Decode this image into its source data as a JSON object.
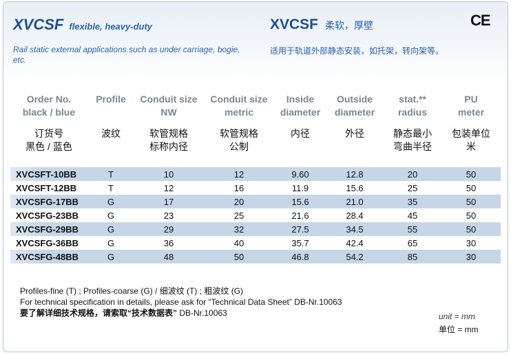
{
  "header": {
    "title_en": "XVCSF",
    "subtitle_en": "flexible, heavy-duty",
    "desc_en": "Rail static external applications such as under carriage, bogie, etc.",
    "title_cn": "XVCSF",
    "subtitle_cn": "柔软，厚壁",
    "desc_cn": "适用于轨道外部静态安装，如托架，转向架等。",
    "mark": "CE"
  },
  "table": {
    "headers_en": [
      [
        "Order No.",
        "black / blue"
      ],
      [
        "Profile",
        ""
      ],
      [
        "Conduit size",
        "NW"
      ],
      [
        "Conduit size",
        "metric"
      ],
      [
        "Inside",
        "diameter"
      ],
      [
        "Outside",
        "diameter"
      ],
      [
        "stat.**",
        "radius"
      ],
      [
        "PU",
        "meter"
      ]
    ],
    "headers_cn": [
      [
        "订货号",
        "黑色 / 蓝色"
      ],
      [
        "波纹",
        ""
      ],
      [
        "软管规格",
        "标称内径"
      ],
      [
        "软管规格",
        "公制"
      ],
      [
        "内径",
        ""
      ],
      [
        "外径",
        ""
      ],
      [
        "静态最小",
        "弯曲半径"
      ],
      [
        "包装单位",
        "米"
      ]
    ],
    "rows": [
      [
        "XVCSFT-10BB",
        "T",
        "10",
        "12",
        "9.60",
        "12.8",
        "20",
        "50"
      ],
      [
        "XVCSFT-12BB",
        "T",
        "12",
        "16",
        "11.9",
        "15.6",
        "25",
        "50"
      ],
      [
        "XVCSFG-17BB",
        "G",
        "17",
        "20",
        "15.6",
        "21.0",
        "35",
        "50"
      ],
      [
        "XVCSFG-23BB",
        "G",
        "23",
        "25",
        "21.6",
        "28.4",
        "45",
        "50"
      ],
      [
        "XVCSFG-29BB",
        "G",
        "29",
        "32",
        "27.5",
        "34.5",
        "55",
        "50"
      ],
      [
        "XVCSFG-36BB",
        "G",
        "36",
        "40",
        "35.7",
        "42.4",
        "65",
        "30"
      ],
      [
        "XVCSFG-48BB",
        "G",
        "48",
        "50",
        "46.8",
        "54.2",
        "85",
        "30"
      ]
    ]
  },
  "notes": {
    "line1": "Profiles-fine (T) ; Profiles-coarse (G)  /  细波纹  (T) ; 粗波纹  (G)",
    "line2": "For technical specification in details,  please ask for “Technical Data Sheet” DB-Nr.10063",
    "line3_cn": "要了解详细技术规格，请索取“技术数据表”",
    "line3_ref": " DB-Nr.10063"
  },
  "unit": {
    "en": "unit = mm",
    "cn": "单位 = mm"
  }
}
